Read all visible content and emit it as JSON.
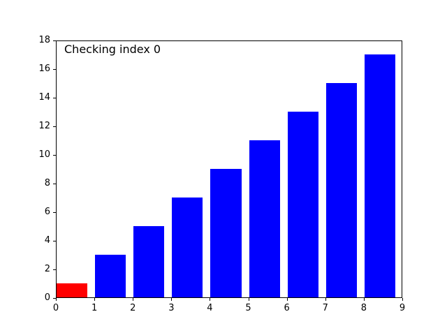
{
  "figure": {
    "background_color": "#ffffff",
    "axis_color": "#000000"
  },
  "chart_data": {
    "type": "bar",
    "annotation": "Checking index 0",
    "x": [
      0,
      1,
      2,
      3,
      4,
      5,
      6,
      7,
      8
    ],
    "values": [
      1,
      3,
      5,
      7,
      9,
      11,
      13,
      15,
      17
    ],
    "bar_colors": [
      "#ff0000",
      "#0000ff",
      "#0000ff",
      "#0000ff",
      "#0000ff",
      "#0000ff",
      "#0000ff",
      "#0000ff",
      "#0000ff"
    ],
    "bar_width": 0.8,
    "bar_align": "edge",
    "title": "",
    "xlabel": "",
    "ylabel": "",
    "xlim": [
      0,
      9
    ],
    "ylim": [
      0,
      18
    ],
    "x_ticks": [
      "0",
      "1",
      "2",
      "3",
      "4",
      "5",
      "6",
      "7",
      "8",
      "9"
    ],
    "y_ticks": [
      "0",
      "2",
      "4",
      "6",
      "8",
      "10",
      "12",
      "14",
      "16",
      "18"
    ],
    "grid": false,
    "legend_position": "none"
  }
}
